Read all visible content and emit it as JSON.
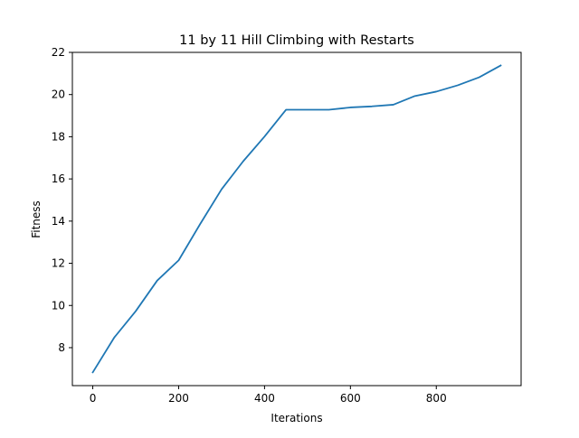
{
  "chart_data": {
    "type": "line",
    "title": "11 by 11 Hill Climbing with Restarts",
    "xlabel": "Iterations",
    "ylabel": "Fitness",
    "xlim": [
      -47.5,
      997.5
    ],
    "ylim": [
      6.2,
      22.0
    ],
    "x_ticks": [
      0,
      200,
      400,
      600,
      800
    ],
    "y_ticks": [
      8,
      10,
      12,
      14,
      16,
      18,
      20,
      22
    ],
    "grid": false,
    "legend": "none",
    "line_color": "#1f77b4",
    "series": [
      {
        "x": [
          0,
          50,
          100,
          150,
          200,
          250,
          300,
          350,
          400,
          450,
          500,
          550,
          600,
          650,
          700,
          750,
          800,
          850,
          900,
          950
        ],
        "values": [
          6.83,
          8.48,
          9.73,
          11.18,
          12.14,
          13.86,
          15.51,
          16.83,
          18.01,
          19.28,
          19.28,
          19.28,
          19.39,
          19.44,
          19.52,
          19.93,
          20.14,
          20.44,
          20.82,
          21.38
        ]
      }
    ]
  }
}
